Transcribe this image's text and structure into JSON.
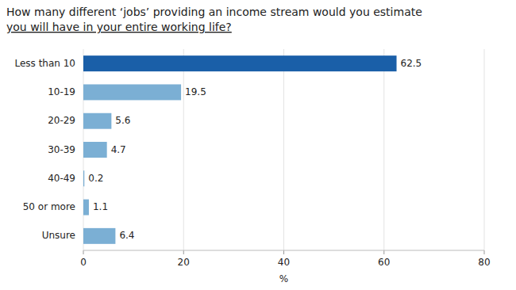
{
  "chart_data": {
    "type": "bar",
    "orientation": "horizontal",
    "title": "How many different ‘jobs’ providing an income stream would you estimate",
    "subtitle": "you will have in your entire working life?",
    "categories": [
      "Less than 10",
      "10-19",
      "20-29",
      "30-39",
      "40-49",
      "50 or more",
      "Unsure"
    ],
    "values": [
      62.5,
      19.5,
      5.6,
      4.7,
      0.2,
      1.1,
      6.4
    ],
    "colors": [
      "#1a5fa8",
      "#7bafd4",
      "#7bafd4",
      "#7bafd4",
      "#7bafd4",
      "#7bafd4",
      "#7bafd4"
    ],
    "xlim": [
      0,
      80
    ],
    "xticks": [
      0,
      20,
      40,
      60,
      80
    ],
    "xlabel": "%",
    "grid": true,
    "data_labels": true
  }
}
